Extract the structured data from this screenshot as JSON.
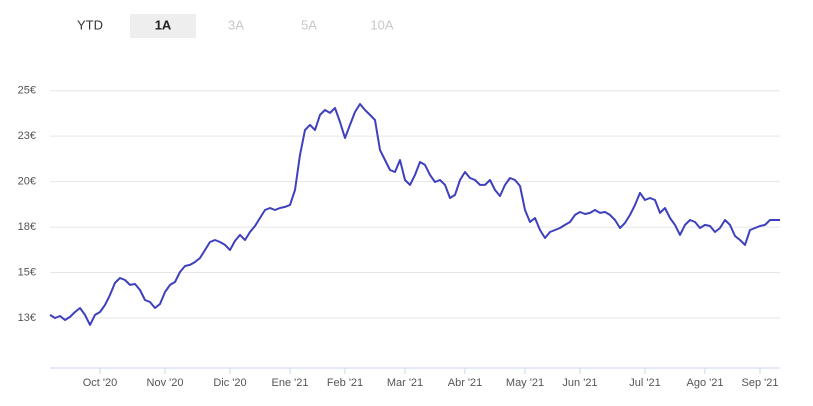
{
  "tabs": [
    "YTD",
    "1A",
    "3A",
    "5A",
    "10A"
  ],
  "selected_tab": "1A",
  "chart_data": {
    "type": "line",
    "categories": [
      null,
      null,
      null,
      null,
      null,
      null,
      null,
      null,
      null,
      null,
      "Oct '20",
      null,
      null,
      null,
      null,
      null,
      null,
      null,
      null,
      null,
      null,
      null,
      null,
      "Nov '20",
      null,
      null,
      null,
      null,
      null,
      null,
      null,
      null,
      null,
      null,
      null,
      null,
      "Dic '20",
      null,
      null,
      null,
      null,
      null,
      null,
      null,
      null,
      null,
      null,
      null,
      "Ene '21",
      null,
      null,
      null,
      null,
      null,
      null,
      null,
      null,
      null,
      null,
      "Feb '21",
      null,
      null,
      null,
      null,
      null,
      null,
      null,
      null,
      null,
      null,
      null,
      "Mar '21",
      null,
      null,
      null,
      null,
      null,
      null,
      null,
      null,
      null,
      null,
      null,
      "Abr '21",
      null,
      null,
      null,
      null,
      null,
      null,
      null,
      null,
      null,
      null,
      null,
      "May '21",
      null,
      null,
      null,
      null,
      null,
      null,
      null,
      null,
      null,
      null,
      "Jun '21",
      null,
      null,
      null,
      null,
      null,
      null,
      null,
      null,
      null,
      null,
      null,
      null,
      "Jul '21",
      null,
      null,
      null,
      null,
      null,
      null,
      null,
      null,
      null,
      null,
      null,
      "Ago '21",
      null,
      null,
      null,
      null,
      null,
      null,
      null,
      null,
      null,
      null,
      "Sep '21",
      null,
      null,
      null,
      null
    ],
    "values": [
      12.67,
      12.5,
      12.61,
      12.39,
      12.56,
      12.83,
      13.05,
      12.67,
      12.12,
      12.67,
      12.83,
      13.22,
      13.77,
      14.43,
      14.7,
      14.59,
      14.32,
      14.37,
      14.04,
      13.49,
      13.38,
      13.05,
      13.27,
      13.93,
      14.32,
      14.48,
      15.03,
      15.36,
      15.42,
      15.58,
      15.8,
      16.24,
      16.68,
      16.79,
      16.68,
      16.52,
      16.24,
      16.74,
      17.07,
      16.79,
      17.23,
      17.56,
      18.0,
      18.44,
      18.55,
      18.44,
      18.55,
      18.61,
      18.72,
      19.54,
      21.47,
      22.84,
      23.12,
      22.84,
      23.67,
      23.94,
      23.78,
      24.05,
      23.28,
      22.4,
      23.12,
      23.83,
      24.27,
      23.94,
      23.67,
      23.39,
      21.74,
      21.19,
      20.64,
      20.53,
      21.19,
      20.09,
      19.82,
      20.37,
      21.08,
      20.92,
      20.37,
      19.98,
      20.09,
      19.82,
      19.1,
      19.27,
      20.09,
      20.53,
      20.2,
      20.09,
      19.82,
      19.82,
      20.09,
      19.54,
      19.21,
      19.82,
      20.2,
      20.09,
      19.76,
      18.44,
      17.78,
      18.0,
      17.34,
      16.9,
      17.23,
      17.34,
      17.45,
      17.62,
      17.78,
      18.17,
      18.33,
      18.22,
      18.28,
      18.44,
      18.28,
      18.33,
      18.17,
      17.89,
      17.45,
      17.73,
      18.17,
      18.72,
      19.38,
      18.99,
      19.1,
      18.99,
      18.28,
      18.55,
      18.0,
      17.62,
      17.07,
      17.62,
      17.89,
      17.78,
      17.45,
      17.62,
      17.56,
      17.23,
      17.45,
      17.89,
      17.62,
      17.01,
      16.79,
      16.52,
      17.34,
      17.45,
      17.56,
      17.62,
      17.89,
      17.89,
      17.89
    ],
    "color": "#3e40bd",
    "ylim": [
      9.75,
      26.25
    ],
    "yticks": [
      {
        "value": 12.5,
        "label": "13€"
      },
      {
        "value": 15,
        "label": "15€"
      },
      {
        "value": 17.5,
        "label": "18€"
      },
      {
        "value": 20,
        "label": "20€"
      },
      {
        "value": 22.5,
        "label": "23€"
      },
      {
        "value": 25,
        "label": "25€"
      }
    ],
    "grid": true
  }
}
